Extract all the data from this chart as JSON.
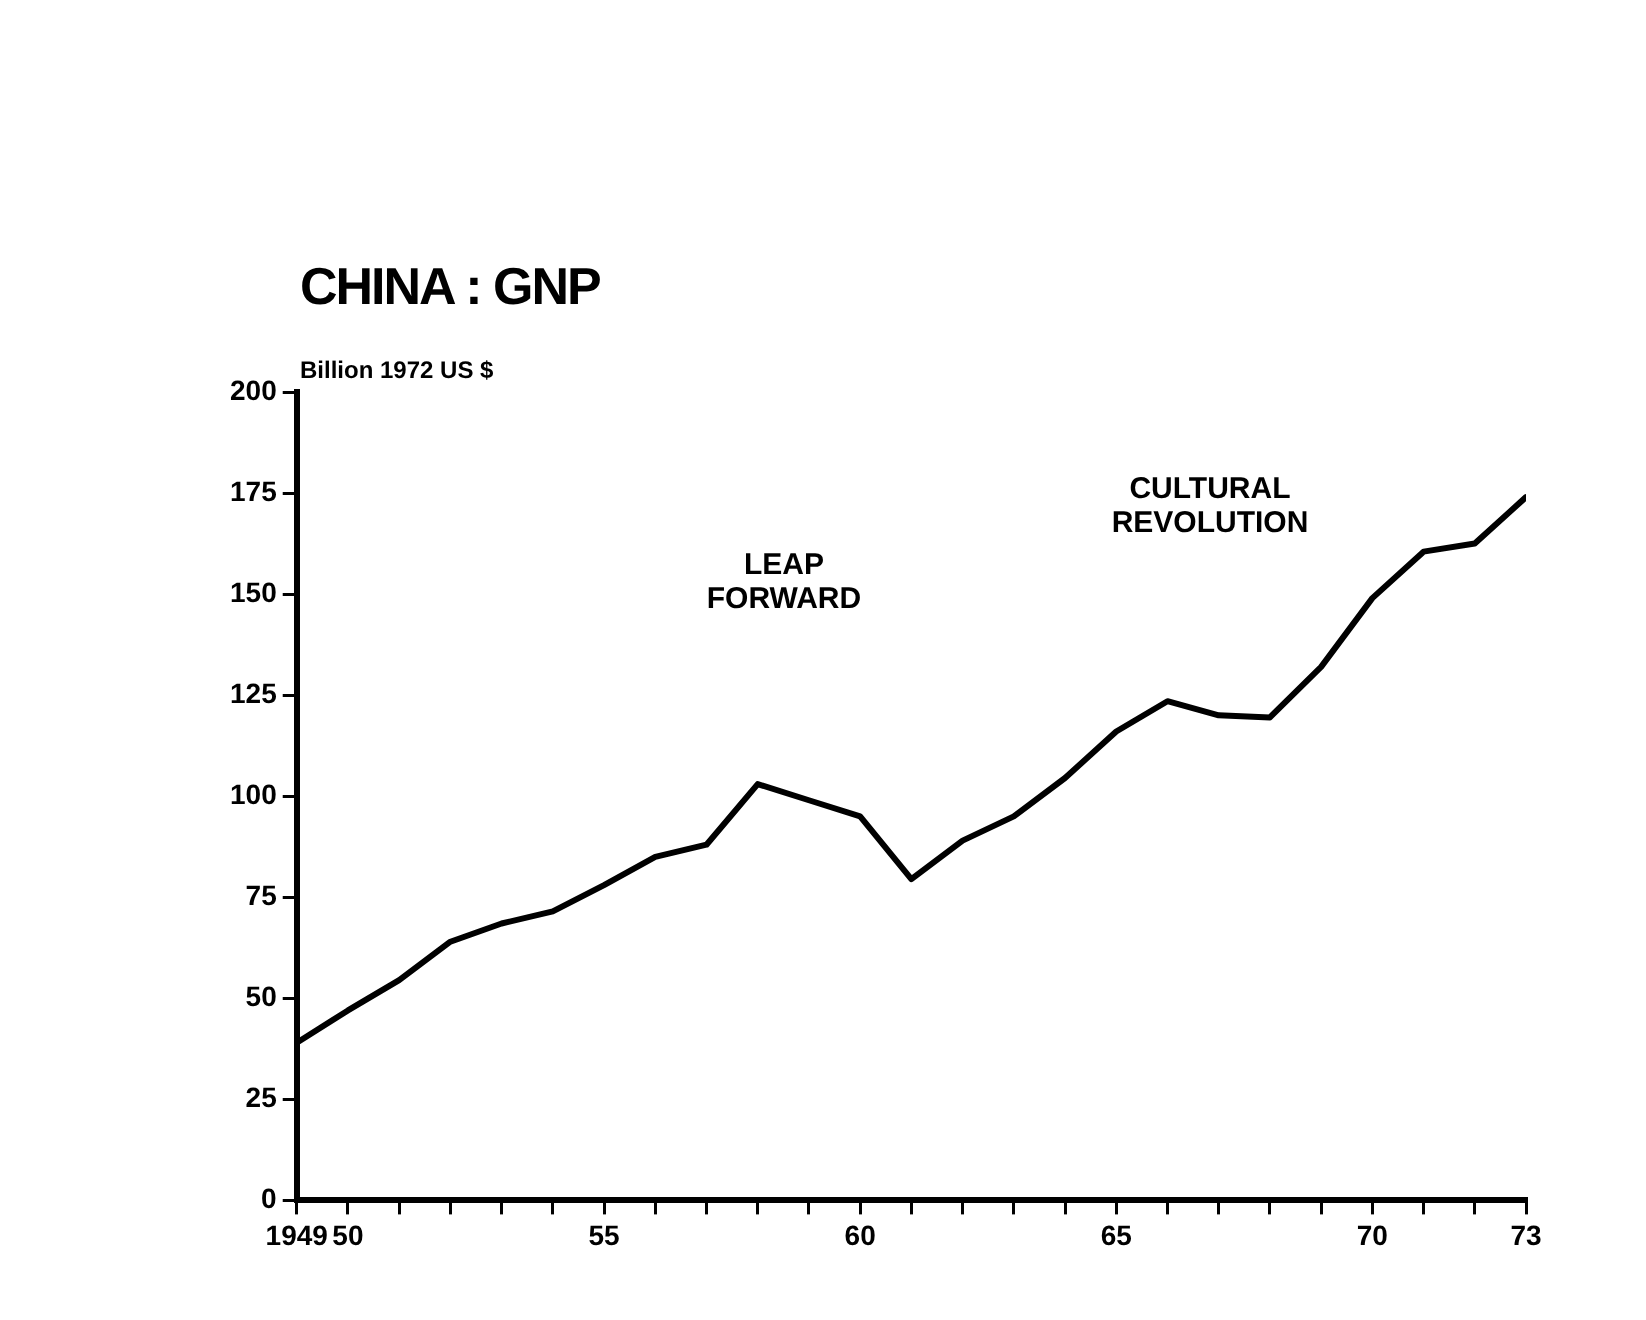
{
  "chart_data": {
    "type": "line",
    "title": "CHINA : GNP",
    "ylabel": "Billion 1972 US $",
    "x": [
      1949,
      1950,
      1951,
      1952,
      1953,
      1954,
      1955,
      1956,
      1957,
      1958,
      1959,
      1960,
      1961,
      1962,
      1963,
      1964,
      1965,
      1966,
      1967,
      1968,
      1969,
      1970,
      1971,
      1972,
      1973
    ],
    "series": [
      {
        "color": "#000000",
        "values": [
          39,
          47,
          54.5,
          64,
          68.5,
          71.5,
          78,
          85,
          88,
          103,
          99,
          95,
          79.5,
          89,
          95,
          104.5,
          116,
          123.5,
          120,
          119.5,
          132,
          149,
          160.5,
          162.5,
          174
        ]
      }
    ],
    "xlim": [
      1949,
      1973
    ],
    "xticks": [
      {
        "value": 1949,
        "label": "1949"
      },
      {
        "value": 1950,
        "label": "50"
      },
      {
        "value": 1951,
        "label": null
      },
      {
        "value": 1952,
        "label": null
      },
      {
        "value": 1953,
        "label": null
      },
      {
        "value": 1954,
        "label": null
      },
      {
        "value": 1955,
        "label": "55"
      },
      {
        "value": 1956,
        "label": null
      },
      {
        "value": 1957,
        "label": null
      },
      {
        "value": 1958,
        "label": null
      },
      {
        "value": 1959,
        "label": null
      },
      {
        "value": 1960,
        "label": "60"
      },
      {
        "value": 1961,
        "label": null
      },
      {
        "value": 1962,
        "label": null
      },
      {
        "value": 1963,
        "label": null
      },
      {
        "value": 1964,
        "label": null
      },
      {
        "value": 1965,
        "label": "65"
      },
      {
        "value": 1966,
        "label": null
      },
      {
        "value": 1967,
        "label": null
      },
      {
        "value": 1968,
        "label": null
      },
      {
        "value": 1969,
        "label": null
      },
      {
        "value": 1970,
        "label": "70"
      },
      {
        "value": 1971,
        "label": null
      },
      {
        "value": 1972,
        "label": null
      },
      {
        "value": 1973,
        "label": "73"
      }
    ],
    "ylim": [
      0,
      200
    ],
    "yticks": [
      0,
      25,
      50,
      75,
      100,
      125,
      150,
      175,
      200
    ],
    "annotations": [
      "LEAP\nFORWARD",
      "CULTURAL\nREVOLUTION"
    ],
    "grid": false,
    "legend": false,
    "marker": "none",
    "line_style": "solid"
  }
}
